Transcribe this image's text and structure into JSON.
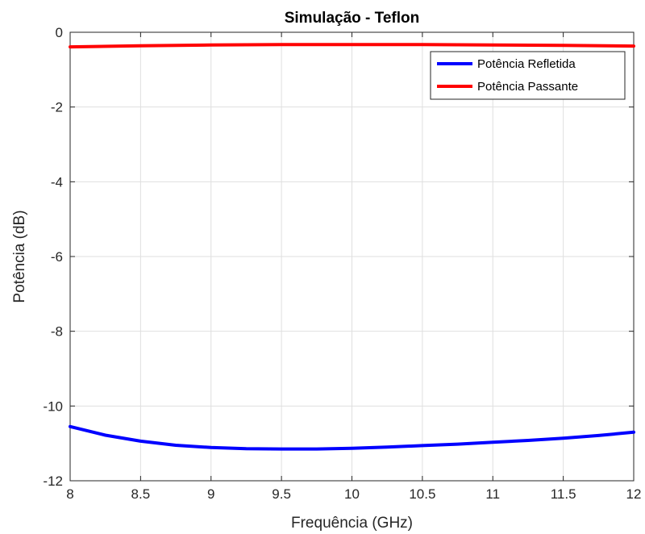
{
  "chart_data": {
    "type": "line",
    "title": "Simulação - Teflon",
    "xlabel": "Frequência (GHz)",
    "ylabel": "Potência (dB)",
    "xlim": [
      8,
      12
    ],
    "ylim": [
      -12,
      0
    ],
    "xticks": [
      8,
      8.5,
      9,
      9.5,
      10,
      10.5,
      11,
      11.5,
      12
    ],
    "yticks": [
      -12,
      -10,
      -8,
      -6,
      -4,
      -2,
      0
    ],
    "grid": true,
    "legend_position": "top-right",
    "series": [
      {
        "name": "Potência Refletida",
        "color": "#0000ff",
        "x": [
          8.0,
          8.25,
          8.5,
          8.75,
          9.0,
          9.25,
          9.5,
          9.75,
          10.0,
          10.25,
          10.5,
          10.75,
          11.0,
          11.25,
          11.5,
          11.75,
          12.0
        ],
        "y": [
          -10.55,
          -10.78,
          -10.94,
          -11.05,
          -11.11,
          -11.14,
          -11.15,
          -11.15,
          -11.13,
          -11.1,
          -11.06,
          -11.02,
          -10.97,
          -10.92,
          -10.86,
          -10.79,
          -10.7
        ]
      },
      {
        "name": "Potência Passante",
        "color": "#ff0000",
        "x": [
          8.0,
          8.5,
          9.0,
          9.5,
          10.0,
          10.5,
          11.0,
          11.5,
          12.0
        ],
        "y": [
          -0.39,
          -0.36,
          -0.34,
          -0.33,
          -0.33,
          -0.33,
          -0.34,
          -0.35,
          -0.37
        ]
      }
    ]
  }
}
